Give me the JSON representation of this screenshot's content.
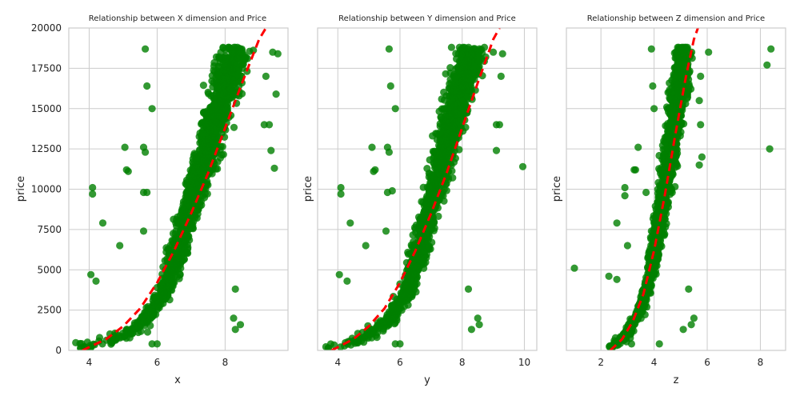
{
  "colors": {
    "points": "#008000",
    "trend": "#ff0000",
    "grid": "#cccccc",
    "background": "#ffffff"
  },
  "chart_data": [
    {
      "type": "scatter",
      "title": "Relationship between X dimension and Price",
      "xlabel": "x",
      "ylabel": "price",
      "xlim": [
        3.4,
        9.85
      ],
      "ylim": [
        0,
        20000
      ],
      "xticks": [
        4,
        6,
        8
      ],
      "yticks": [
        0,
        2500,
        5000,
        7500,
        10000,
        12500,
        15000,
        17500,
        20000
      ],
      "grid": true,
      "legend": "none",
      "main_cloud": {
        "x_at_y": [
          [
            3.75,
            300
          ],
          [
            4.5,
            500
          ],
          [
            5.5,
            1500
          ],
          [
            6.2,
            3500
          ],
          [
            6.6,
            6000
          ],
          [
            7.0,
            9000
          ],
          [
            7.4,
            12000
          ],
          [
            7.8,
            15000
          ],
          [
            8.3,
            18500
          ]
        ],
        "x_spread": [
          0.25,
          0.3,
          0.35,
          0.35,
          0.4,
          0.45,
          0.5,
          0.55,
          0.6
        ],
        "y_max": 18800
      },
      "outliers": [
        [
          5.65,
          18700
        ],
        [
          5.7,
          16400
        ],
        [
          5.85,
          15000
        ],
        [
          9.4,
          18500
        ],
        [
          9.55,
          18400
        ],
        [
          9.2,
          17000
        ],
        [
          9.15,
          14000
        ],
        [
          9.3,
          14000
        ],
        [
          9.5,
          15900
        ],
        [
          9.35,
          12400
        ],
        [
          9.45,
          11300
        ],
        [
          5.6,
          12600
        ],
        [
          5.65,
          12300
        ],
        [
          5.05,
          12600
        ],
        [
          5.1,
          11200
        ],
        [
          5.15,
          11100
        ],
        [
          5.7,
          9800
        ],
        [
          5.6,
          9800
        ],
        [
          4.1,
          10100
        ],
        [
          4.1,
          9700
        ],
        [
          4.4,
          7900
        ],
        [
          4.9,
          6500
        ],
        [
          5.6,
          7400
        ],
        [
          4.05,
          4700
        ],
        [
          4.2,
          4300
        ],
        [
          8.3,
          3800
        ],
        [
          8.25,
          2000
        ],
        [
          8.3,
          1300
        ],
        [
          8.45,
          1600
        ],
        [
          5.85,
          400
        ],
        [
          6.0,
          400
        ]
      ],
      "trend": [
        [
          3.8,
          0
        ],
        [
          4.5,
          700
        ],
        [
          5.0,
          1500
        ],
        [
          5.5,
          2600
        ],
        [
          6.0,
          4200
        ],
        [
          6.5,
          6200
        ],
        [
          7.0,
          8500
        ],
        [
          7.5,
          11000
        ],
        [
          8.0,
          13800
        ],
        [
          8.5,
          16600
        ],
        [
          9.0,
          19300
        ],
        [
          9.2,
          20000
        ]
      ]
    },
    {
      "type": "scatter",
      "title": "Relationship between Y dimension and Price",
      "xlabel": "y",
      "ylabel": "price",
      "xlim": [
        3.35,
        10.4
      ],
      "ylim": [
        0,
        20000
      ],
      "xticks": [
        4,
        6,
        8,
        10
      ],
      "yticks": [
        0,
        2500,
        5000,
        7500,
        10000,
        12500,
        15000,
        17500,
        20000
      ],
      "grid": true,
      "legend": "none",
      "main_cloud": {
        "x_at_y": [
          [
            3.75,
            300
          ],
          [
            4.5,
            500
          ],
          [
            5.5,
            1500
          ],
          [
            6.2,
            3500
          ],
          [
            6.6,
            6000
          ],
          [
            7.0,
            9000
          ],
          [
            7.4,
            12000
          ],
          [
            7.8,
            15000
          ],
          [
            8.3,
            18500
          ]
        ],
        "x_spread": [
          0.25,
          0.3,
          0.35,
          0.35,
          0.4,
          0.45,
          0.5,
          0.55,
          0.6
        ],
        "y_max": 18800
      },
      "outliers": [
        [
          5.65,
          18700
        ],
        [
          5.7,
          16400
        ],
        [
          5.85,
          15000
        ],
        [
          9.0,
          18500
        ],
        [
          9.3,
          18400
        ],
        [
          9.25,
          17000
        ],
        [
          9.1,
          14000
        ],
        [
          9.2,
          14000
        ],
        [
          9.95,
          11400
        ],
        [
          9.1,
          12400
        ],
        [
          5.6,
          12600
        ],
        [
          5.65,
          12300
        ],
        [
          5.1,
          12600
        ],
        [
          5.2,
          11200
        ],
        [
          5.15,
          11100
        ],
        [
          5.6,
          9800
        ],
        [
          5.75,
          9900
        ],
        [
          4.1,
          10100
        ],
        [
          4.1,
          9700
        ],
        [
          4.4,
          7900
        ],
        [
          4.9,
          6500
        ],
        [
          5.55,
          7400
        ],
        [
          4.05,
          4700
        ],
        [
          4.3,
          4300
        ],
        [
          8.2,
          3800
        ],
        [
          8.5,
          2000
        ],
        [
          8.3,
          1300
        ],
        [
          8.55,
          1600
        ],
        [
          5.85,
          400
        ],
        [
          6.0,
          400
        ]
      ],
      "trend": [
        [
          3.8,
          0
        ],
        [
          4.5,
          700
        ],
        [
          5.0,
          1500
        ],
        [
          5.5,
          2600
        ],
        [
          6.0,
          4200
        ],
        [
          6.5,
          6200
        ],
        [
          7.0,
          8500
        ],
        [
          7.5,
          11000
        ],
        [
          8.0,
          13800
        ],
        [
          8.5,
          16600
        ],
        [
          9.0,
          19300
        ],
        [
          9.2,
          20000
        ]
      ]
    },
    {
      "type": "scatter",
      "title": "Relationship between Z dimension and Price",
      "xlabel": "z",
      "ylabel": "price",
      "xlim": [
        0.7,
        8.95
      ],
      "ylim": [
        0,
        20000
      ],
      "xticks": [
        2,
        4,
        6,
        8
      ],
      "yticks": [
        0,
        2500,
        5000,
        7500,
        10000,
        12500,
        15000,
        17500,
        20000
      ],
      "grid": true,
      "legend": "none",
      "main_cloud": {
        "x_at_y": [
          [
            2.4,
            300
          ],
          [
            2.9,
            800
          ],
          [
            3.5,
            2500
          ],
          [
            3.9,
            5000
          ],
          [
            4.2,
            8000
          ],
          [
            4.5,
            11000
          ],
          [
            4.75,
            14000
          ],
          [
            5.0,
            17000
          ],
          [
            5.1,
            18500
          ]
        ],
        "x_spread": [
          0.15,
          0.2,
          0.25,
          0.3,
          0.3,
          0.35,
          0.35,
          0.4,
          0.4
        ],
        "y_max": 18800
      },
      "outliers": [
        [
          8.4,
          18700
        ],
        [
          8.25,
          17700
        ],
        [
          8.35,
          12500
        ],
        [
          6.05,
          18500
        ],
        [
          5.75,
          17000
        ],
        [
          5.7,
          15500
        ],
        [
          5.75,
          14000
        ],
        [
          5.8,
          12000
        ],
        [
          5.7,
          11500
        ],
        [
          3.4,
          12600
        ],
        [
          3.3,
          11200
        ],
        [
          3.25,
          11200
        ],
        [
          2.9,
          10100
        ],
        [
          2.9,
          9600
        ],
        [
          3.9,
          18700
        ],
        [
          3.95,
          16400
        ],
        [
          4.0,
          15000
        ],
        [
          2.6,
          7900
        ],
        [
          3.0,
          6500
        ],
        [
          3.9,
          7400
        ],
        [
          1.0,
          5100
        ],
        [
          2.3,
          4600
        ],
        [
          2.6,
          4400
        ],
        [
          5.3,
          3800
        ],
        [
          5.5,
          2000
        ],
        [
          5.1,
          1300
        ],
        [
          5.4,
          1600
        ],
        [
          3.15,
          400
        ],
        [
          4.2,
          400
        ],
        [
          3.7,
          9800
        ]
      ],
      "trend": [
        [
          2.35,
          0
        ],
        [
          2.8,
          700
        ],
        [
          3.2,
          1800
        ],
        [
          3.6,
          3500
        ],
        [
          4.0,
          6200
        ],
        [
          4.4,
          9600
        ],
        [
          4.8,
          13400
        ],
        [
          5.2,
          17000
        ],
        [
          5.5,
          19300
        ],
        [
          5.65,
          20000
        ]
      ]
    }
  ]
}
